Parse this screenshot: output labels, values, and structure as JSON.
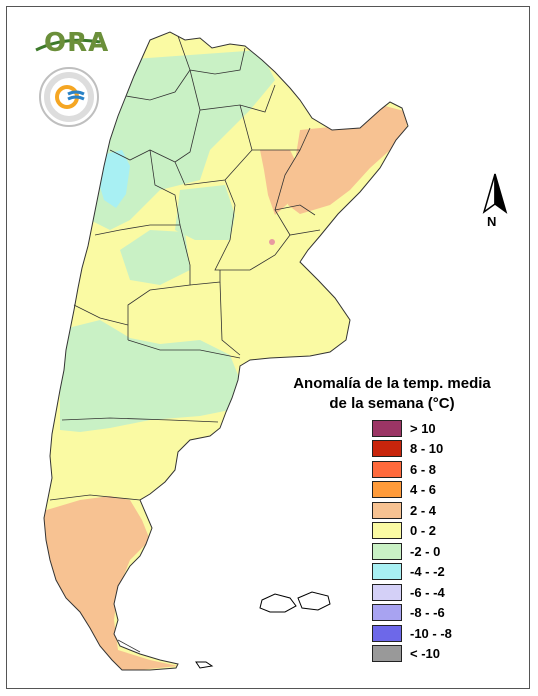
{
  "legend": {
    "title_line1": "Anomalía de la temp. media",
    "title_line2": "de la semana (°C)",
    "items": [
      {
        "label": "> 10",
        "color": "#9b3565"
      },
      {
        "label": "8 - 10",
        "color": "#c8250c"
      },
      {
        "label": "6 - 8",
        "color": "#ff6a3d"
      },
      {
        "label": "4 - 6",
        "color": "#ff9b3a"
      },
      {
        "label": "2 - 4",
        "color": "#f7c292"
      },
      {
        "label": "0 - 2",
        "color": "#fafaa3"
      },
      {
        "label": "-2 - 0",
        "color": "#c9f1c5"
      },
      {
        "label": "-4 - -2",
        "color": "#a8f0f3"
      },
      {
        "label": "-6 - -4",
        "color": "#d4d0f7"
      },
      {
        "label": "-8 - -6",
        "color": "#a8a3f1"
      },
      {
        "label": "-10 - -8",
        "color": "#6d68e9"
      },
      {
        "label": "< -10",
        "color": "#999999"
      }
    ]
  },
  "north_arrow": {
    "label": "N"
  },
  "logo": {
    "text": "ORA"
  },
  "map": {
    "colors": {
      "warm_2_4": "#f7c292",
      "mild_0_2": "#fafaa3",
      "cool_m2_0": "#c9f1c5",
      "cold_m4_m2": "#a8f0f3",
      "hot_spot": "#e89aa0",
      "border": "#333333"
    }
  }
}
